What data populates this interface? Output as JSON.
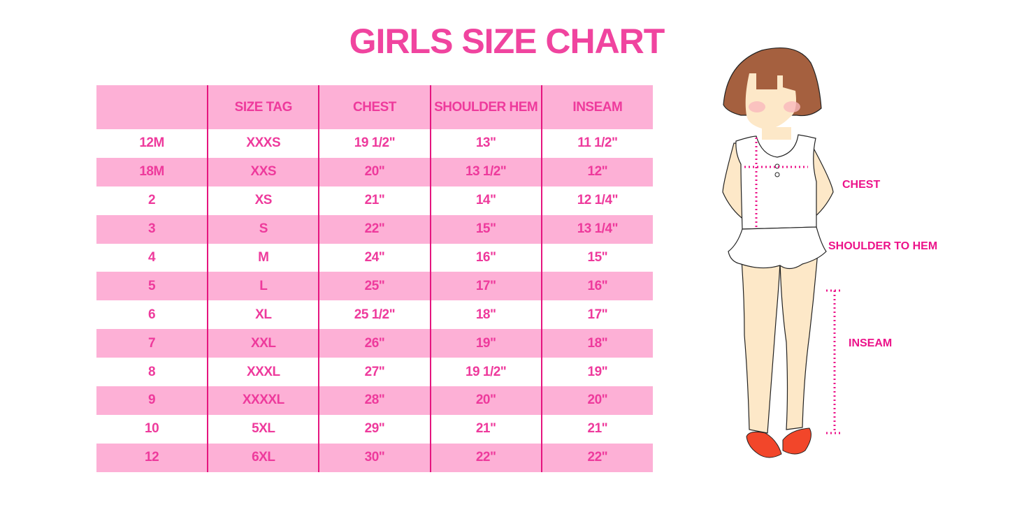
{
  "title": "GIRLS SIZE CHART",
  "table": {
    "headers": [
      "",
      "SIZE TAG",
      "CHEST",
      "SHOULDER HEM",
      "INSEAM"
    ],
    "rows": [
      [
        "12M",
        "XXXS",
        "19 1/2\"",
        "13\"",
        "11 1/2\""
      ],
      [
        "18M",
        "XXS",
        "20\"",
        "13 1/2\"",
        "12\""
      ],
      [
        "2",
        "XS",
        "21\"",
        "14\"",
        "12 1/4\""
      ],
      [
        "3",
        "S",
        "22\"",
        "15\"",
        "13 1/4\""
      ],
      [
        "4",
        "M",
        "24\"",
        "16\"",
        "15\""
      ],
      [
        "5",
        "L",
        "25\"",
        "17\"",
        "16\""
      ],
      [
        "6",
        "XL",
        "25 1/2\"",
        "18\"",
        "17\""
      ],
      [
        "7",
        "XXL",
        "26\"",
        "19\"",
        "18\""
      ],
      [
        "8",
        "XXXL",
        "27\"",
        "19 1/2\"",
        "19\""
      ],
      [
        "9",
        "XXXXL",
        "28\"",
        "20\"",
        "20\""
      ],
      [
        "10",
        "5XL",
        "29\"",
        "21\"",
        "21\""
      ],
      [
        "12",
        "6XL",
        "30\"",
        "22\"",
        "22\""
      ]
    ]
  },
  "illustration": {
    "labels": {
      "chest": "CHEST",
      "shoulder": "SHOULDER TO HEM",
      "inseam": "INSEAM"
    }
  },
  "colors": {
    "accent": "#f0449f",
    "row_pink": "#fdb0d6",
    "divider": "#e5157f"
  }
}
